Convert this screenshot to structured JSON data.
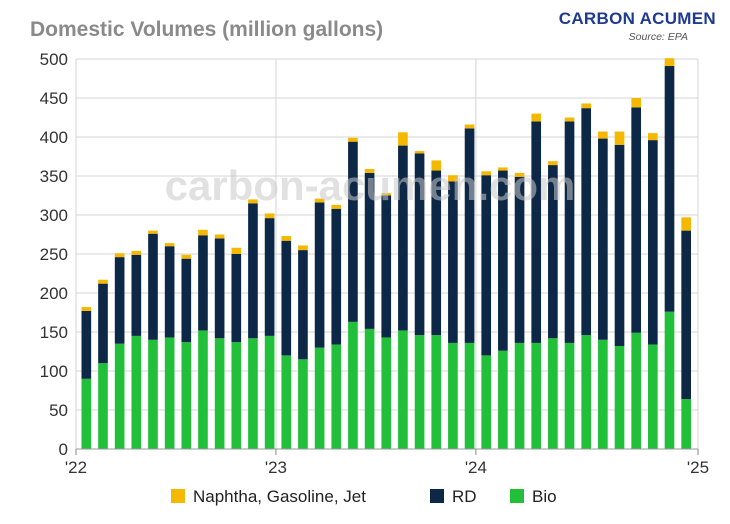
{
  "header": {
    "title": "Domestic Volumes (million gallons)"
  },
  "brand": {
    "name": "CARBON ACUMEN",
    "source": "Source: EPA"
  },
  "watermark": "carbon-acumen.com",
  "colors": {
    "naphtha": "#f5b800",
    "rd": "#0d2847",
    "bio": "#22c03a",
    "grid": "#d4d4d4"
  },
  "chart_data": {
    "type": "bar",
    "stacked": true,
    "title": "Domestic Volumes (million gallons)",
    "ylim": [
      0,
      500
    ],
    "yticks": [
      0,
      50,
      100,
      150,
      200,
      250,
      300,
      350,
      400,
      450,
      500
    ],
    "xticks": [
      {
        "label": "'22",
        "index": 0
      },
      {
        "label": "'23",
        "index": 12
      },
      {
        "label": "'24",
        "index": 24
      },
      {
        "label": "'25",
        "index": 36
      }
    ],
    "grid": "vertical-and-horizontal",
    "legend_position": "bottom",
    "categories": [
      "2022-01",
      "2022-02",
      "2022-03",
      "2022-04",
      "2022-05",
      "2022-06",
      "2022-07",
      "2022-08",
      "2022-09",
      "2022-10",
      "2022-11",
      "2022-12",
      "2023-01",
      "2023-02",
      "2023-03",
      "2023-04",
      "2023-05",
      "2023-06",
      "2023-07",
      "2023-08",
      "2023-09",
      "2023-10",
      "2023-11",
      "2023-12",
      "2024-01",
      "2024-02",
      "2024-03",
      "2024-04",
      "2024-05",
      "2024-06",
      "2024-07",
      "2024-08",
      "2024-09",
      "2024-10",
      "2024-11",
      "2024-12",
      "2025-01"
    ],
    "series": [
      {
        "name": "Bio",
        "color": "#22c03a",
        "values": [
          90,
          110,
          135,
          145,
          140,
          143,
          137,
          152,
          142,
          137,
          142,
          145,
          120,
          115,
          130,
          134,
          163,
          154,
          143,
          152,
          146,
          146,
          136,
          136,
          120,
          126,
          136,
          136,
          142,
          136,
          146,
          140,
          132,
          149,
          134,
          176,
          64
        ]
      },
      {
        "name": "RD",
        "color": "#0d2847",
        "values": [
          87,
          102,
          111,
          104,
          136,
          117,
          107,
          122,
          128,
          113,
          173,
          151,
          147,
          140,
          186,
          174,
          231,
          200,
          182,
          237,
          233,
          211,
          207,
          275,
          231,
          231,
          213,
          284,
          222,
          284,
          291,
          258,
          258,
          289,
          262,
          315,
          216
        ]
      },
      {
        "name": "Naphtha, Gasoline, Jet",
        "color": "#f5b800",
        "values": [
          5,
          5,
          5,
          5,
          4,
          4,
          5,
          7,
          5,
          8,
          5,
          6,
          6,
          6,
          5,
          5,
          5,
          5,
          3,
          17,
          3,
          13,
          8,
          5,
          5,
          4,
          5,
          10,
          5,
          5,
          6,
          9,
          17,
          12,
          9,
          10,
          17
        ]
      }
    ],
    "legend": [
      "Naphtha, Gasoline, Jet",
      "RD",
      "Bio"
    ]
  }
}
